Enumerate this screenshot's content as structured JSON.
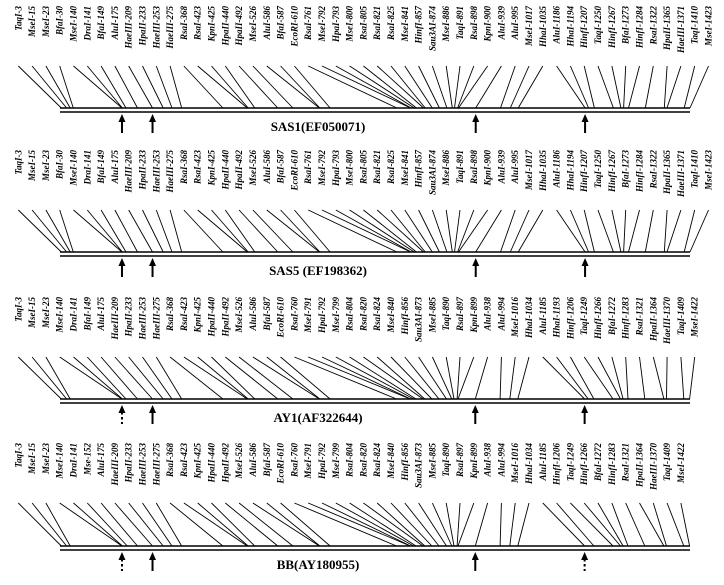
{
  "maps": [
    {
      "title": "SAS1(EF050071)",
      "sites": [
        "TaqI-3",
        "MseI-15",
        "MseI-23",
        "BfaI-30",
        "MseI-140",
        "DraI-141",
        "BfaI-149",
        "AluI-175",
        "HaeIII-209",
        "HpaII-233",
        "HaeIII-253",
        "HaeIII-275",
        "RsaI-368",
        "RsaI-423",
        "KpnI-425",
        "HpaII-440",
        "HpaII-492",
        "MseI-526",
        "AluI-586",
        "BfaI-587",
        "EcoRI-610",
        "RsaI-761",
        "MseI-792",
        "HpaI-793",
        "MseI-800",
        "RsaI-805",
        "RsaI-821",
        "RsaI-825",
        "MseI-841",
        "HinfI-857",
        "Sau3AI-874",
        "MseI-886",
        "TaqI-891",
        "RsaI-898",
        "KpnI-900",
        "AluI-939",
        "AluI-995",
        "MseI-1017",
        "HhaI-1035",
        "AluI-1186",
        "HhaI-1194",
        "HinfI-1207",
        "TaqI-1250",
        "HinfI-1267",
        "BfaI-1273",
        "HinfI-1284",
        "RsaI-1322",
        "HpaII-1365",
        "HaeIII-1371",
        "TaqI-1410",
        "MseI-1423"
      ],
      "markers": [
        {
          "position": 140,
          "style": "solid"
        },
        {
          "position": 209,
          "style": "solid"
        },
        {
          "position": 939,
          "style": "solid"
        },
        {
          "position": 1186,
          "style": "solid"
        }
      ]
    },
    {
      "title": "SAS5 (EF198362)",
      "sites": [
        "TaqI-3",
        "MseI-15",
        "MseI-23",
        "BfaI-30",
        "MseI-140",
        "DraI-141",
        "BfaI-149",
        "AluI-175",
        "HaeIII-209",
        "HpaII-233",
        "HaeIII-253",
        "HaeIII-275",
        "RsaI-368",
        "RsaI-423",
        "KpnI-425",
        "HpaII-440",
        "HpaII-492",
        "MseI-526",
        "AluI-586",
        "BfaI-587",
        "EcoRI-610",
        "RsaI-761",
        "MseI-792",
        "HpaI-793",
        "MseI-800",
        "RsaI-805",
        "RsaI-821",
        "RsaI-825",
        "MseI-841",
        "HinfI-857",
        "Sau3AI-874",
        "MseI-886",
        "TaqI-891",
        "RsaI-898",
        "KpnI-900",
        "AluI-939",
        "AluI-995",
        "MseI-1017",
        "HhaI-1035",
        "AluI-1186",
        "HhaI-1194",
        "HinfI-1207",
        "TaqI-1250",
        "HinfI-1267",
        "BfaI-1273",
        "HinfI-1284",
        "RsaI-1322",
        "HpaII-1365",
        "HaeIII-1371",
        "TaqI-1410",
        "MseI-1423"
      ],
      "markers": [
        {
          "position": 140,
          "style": "solid"
        },
        {
          "position": 209,
          "style": "solid"
        },
        {
          "position": 939,
          "style": "solid"
        },
        {
          "position": 1186,
          "style": "solid"
        }
      ]
    },
    {
      "title": "AY1(AF322644)",
      "sites": [
        "TaqI-3",
        "MseI-15",
        "MseI-23",
        "MseI-140",
        "DraI-141",
        "BfaI-149",
        "AluI-175",
        "HaeIII-209",
        "HpaII-233",
        "HaeIII-253",
        "HaeIII-275",
        "RsaI-368",
        "RsaI-423",
        "KpnI-425",
        "HpaII-440",
        "HpaII-492",
        "MseI-526",
        "AluI-586",
        "BfaI-587",
        "EcoRI-610",
        "RsaI-760",
        "MseI-791",
        "HpaI-792",
        "MseI-799",
        "RsaI-804",
        "RsaI-820",
        "RsaI-824",
        "MseI-840",
        "HinfI-856",
        "Sau3AI-873",
        "MseI-885",
        "TaqI-890",
        "RsaI-897",
        "KpnI-899",
        "AluI-938",
        "AluI-994",
        "MseI-1016",
        "HhaI-1034",
        "AluI-1185",
        "HhaI-1193",
        "HinfI-1206",
        "TaqI-1249",
        "HinfI-1266",
        "BfaI-1272",
        "HinfI-1283",
        "RsaI-1321",
        "HpaII-1364",
        "HaeIII-1370",
        "TaqI-1409",
        "MseI-1422"
      ],
      "markers": [
        {
          "position": 140,
          "style": "dotted"
        },
        {
          "position": 209,
          "style": "solid"
        },
        {
          "position": 938,
          "style": "solid"
        },
        {
          "position": 1185,
          "style": "solid"
        }
      ]
    },
    {
      "title": "BB(AY180955)",
      "sites": [
        "TaqI-3",
        "MseI-15",
        "MseI-23",
        "MseI-140",
        "DraI-141",
        "Mse-152",
        "AluI-175",
        "HaeIII-209",
        "HpaII-233",
        "HaeIII-253",
        "HaeIII-275",
        "RsaI-368",
        "RsaI-423",
        "KpnI-425",
        "HpaII-440",
        "HpaII-492",
        "MseI-526",
        "AluI-586",
        "BfaI-587",
        "EcoRI-610",
        "RsaI-760",
        "MseI-791",
        "HpaI-792",
        "MseI-799",
        "RsaI-804",
        "RsaI-820",
        "RsaI-824",
        "MseI-840",
        "HinfI-856",
        "Sau3AI-873",
        "MseI-885",
        "TaqI-890",
        "RsaI-897",
        "KpnI-899",
        "AluI-938",
        "AluI-994",
        "MseI-1016",
        "HhaI-1034",
        "AluI-1185",
        "HinfI-1206",
        "TaqI-1249",
        "HinfI-1266",
        "BfaI-1272",
        "HinfI-1283",
        "RsaI-1321",
        "HpaII-1364",
        "HaeIII-1370",
        "TaqI-1409",
        "MseI-1422"
      ],
      "markers": [
        {
          "position": 140,
          "style": "dotted"
        },
        {
          "position": 209,
          "style": "solid"
        },
        {
          "position": 938,
          "style": "solid"
        },
        {
          "position": 1185,
          "style": "dotted"
        }
      ]
    }
  ]
}
